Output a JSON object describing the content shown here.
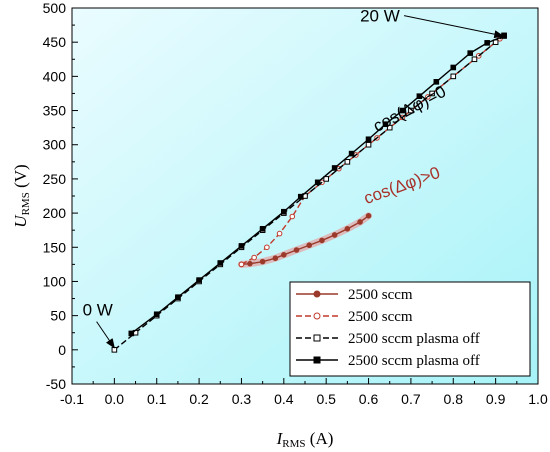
{
  "chart_data": {
    "type": "line",
    "title": "",
    "xlabel": {
      "main": "I",
      "sub": "RMS",
      "unit": " (A)"
    },
    "ylabel": {
      "main": "U",
      "sub": "RMS",
      "unit": " (V)"
    },
    "xlim": [
      -0.1,
      1.0
    ],
    "ylim": [
      -50,
      500
    ],
    "xticks": [
      "-0.1",
      "0.0",
      "0.1",
      "0.2",
      "0.3",
      "0.4",
      "0.5",
      "0.6",
      "0.7",
      "0.8",
      "0.9",
      "1.0"
    ],
    "yticks": [
      "-50",
      "0",
      "50",
      "100",
      "150",
      "200",
      "250",
      "300",
      "350",
      "400",
      "450",
      "500"
    ],
    "grid": false,
    "legend_position": "bottom-right",
    "series": [
      {
        "name": "2500 sccm",
        "style": "solid-filled-circle",
        "color": "#9b3a2a",
        "points": [
          [
            0.3,
            125
          ],
          [
            0.32,
            126
          ],
          [
            0.35,
            129
          ],
          [
            0.38,
            134
          ],
          [
            0.4,
            139
          ],
          [
            0.43,
            146
          ],
          [
            0.46,
            153
          ],
          [
            0.49,
            160
          ],
          [
            0.52,
            168
          ],
          [
            0.55,
            177
          ],
          [
            0.58,
            187
          ],
          [
            0.6,
            196
          ]
        ]
      },
      {
        "name": "2500 sccm",
        "style": "dashed-open-circle",
        "color": "#c0392b",
        "points": [
          [
            0.3,
            125
          ],
          [
            0.33,
            135
          ],
          [
            0.36,
            150
          ],
          [
            0.39,
            170
          ],
          [
            0.42,
            195
          ],
          [
            0.45,
            225
          ],
          [
            0.49,
            245
          ],
          [
            0.53,
            265
          ],
          [
            0.57,
            285
          ],
          [
            0.62,
            310
          ],
          [
            0.68,
            340
          ],
          [
            0.74,
            370
          ],
          [
            0.8,
            400
          ],
          [
            0.86,
            430
          ],
          [
            0.91,
            455
          ]
        ]
      },
      {
        "name": "2500 sccm plasma off",
        "style": "dashed-open-square",
        "color": "#000000",
        "points": [
          [
            0.0,
            0
          ],
          [
            0.05,
            25
          ],
          [
            0.1,
            50
          ],
          [
            0.15,
            75
          ],
          [
            0.2,
            100
          ],
          [
            0.25,
            125
          ],
          [
            0.3,
            150
          ],
          [
            0.35,
            175
          ],
          [
            0.4,
            200
          ],
          [
            0.45,
            225
          ],
          [
            0.5,
            250
          ],
          [
            0.55,
            275
          ],
          [
            0.6,
            300
          ],
          [
            0.65,
            325
          ],
          [
            0.7,
            350
          ],
          [
            0.75,
            375
          ],
          [
            0.8,
            400
          ],
          [
            0.85,
            425
          ],
          [
            0.9,
            450
          ],
          [
            0.92,
            460
          ]
        ]
      },
      {
        "name": "2500 sccm plasma off",
        "style": "solid-filled-square",
        "color": "#000000",
        "points": [
          [
            0.04,
            24
          ],
          [
            0.1,
            52
          ],
          [
            0.15,
            77
          ],
          [
            0.2,
            102
          ],
          [
            0.25,
            127
          ],
          [
            0.3,
            152
          ],
          [
            0.35,
            177
          ],
          [
            0.4,
            202
          ],
          [
            0.44,
            224
          ],
          [
            0.48,
            245
          ],
          [
            0.52,
            266
          ],
          [
            0.56,
            287
          ],
          [
            0.6,
            308
          ],
          [
            0.64,
            330
          ],
          [
            0.68,
            350
          ],
          [
            0.72,
            371
          ],
          [
            0.76,
            392
          ],
          [
            0.8,
            413
          ],
          [
            0.84,
            434
          ],
          [
            0.88,
            449
          ],
          [
            0.92,
            459
          ]
        ]
      }
    ],
    "annotations": [
      {
        "text": "0 W",
        "x": -0.075,
        "y": 50,
        "color": "#000000",
        "arrow_to": [
          0.0,
          3
        ]
      },
      {
        "text": "20 W",
        "x": 0.58,
        "y": 480,
        "color": "#000000",
        "arrow_to": [
          0.918,
          459
        ]
      },
      {
        "text": "cos(Δφ)=0",
        "x": 0.62,
        "y": 318,
        "color": "#000000",
        "rotate": -28
      },
      {
        "text": "cos(Δφ)>0",
        "x": 0.595,
        "y": 213,
        "color": "#a8322a",
        "rotate": -20
      }
    ],
    "colors": {
      "background_gradient_top": "#ffffff",
      "background_gradient_bottom": "#a7f3f8"
    }
  }
}
